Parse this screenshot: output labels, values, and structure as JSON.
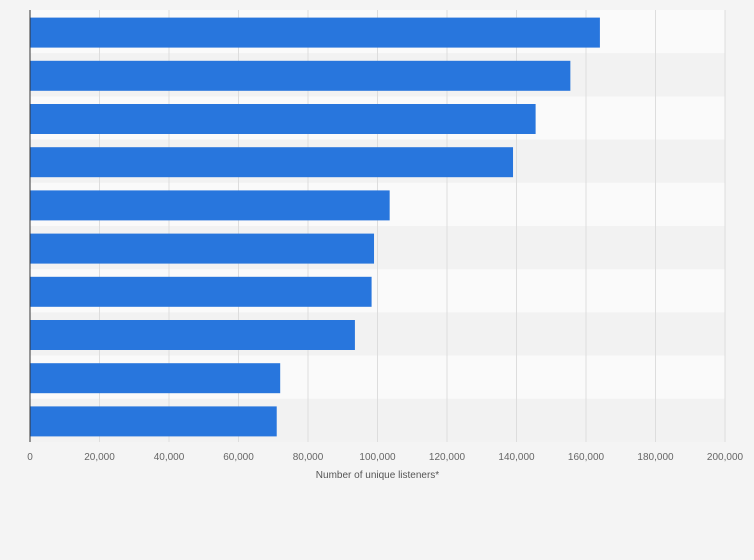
{
  "chart_data": {
    "type": "bar",
    "orientation": "horizontal",
    "categories": [
      "",
      "",
      "",
      "",
      "",
      "",
      "",
      "",
      "",
      ""
    ],
    "values": [
      164000,
      155500,
      145500,
      139000,
      103500,
      99000,
      98300,
      93500,
      72000,
      71000
    ],
    "xlabel": "Number of unique listeners*",
    "ylabel": "",
    "xlim": [
      0,
      200000
    ],
    "xticks": [
      0,
      20000,
      40000,
      60000,
      80000,
      100000,
      120000,
      140000,
      160000,
      180000,
      200000
    ],
    "xtick_labels": [
      "0",
      "20,000",
      "40,000",
      "60,000",
      "80,000",
      "100,000",
      "120,000",
      "140,000",
      "160,000",
      "180,000",
      "200,000"
    ],
    "grid": true,
    "legend": "none",
    "colors": {
      "bar": "#2876dd",
      "background": "#f4f4f4",
      "band_light": "#fafafa",
      "band_dark": "#f2f2f2",
      "grid": "#dddddd",
      "axis": "#333333"
    }
  }
}
